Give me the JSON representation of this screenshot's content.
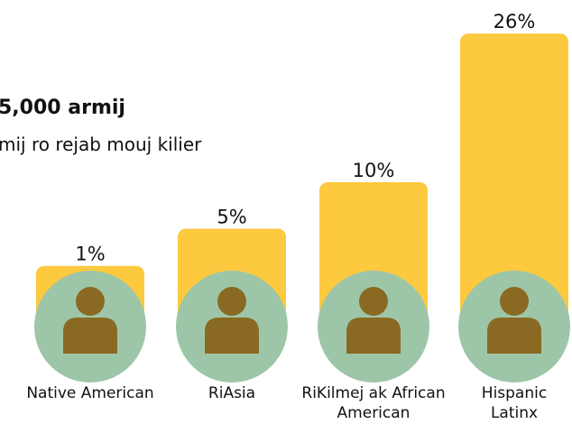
{
  "chart_data": {
    "type": "bar",
    "title": "5,000 armij",
    "subtitle": "mij ro rejab mouj kilier",
    "categories": [
      "Native American",
      "RiAsia",
      "RiKilmej ak African American",
      "Hispanic Latinx"
    ],
    "values": [
      1,
      5,
      10,
      26
    ],
    "value_labels": [
      "1%",
      "5%",
      "10%",
      "26%"
    ],
    "color": "#fcc93f",
    "circle_color": "#9dc6a8",
    "icon_color": "#8a6a22"
  }
}
